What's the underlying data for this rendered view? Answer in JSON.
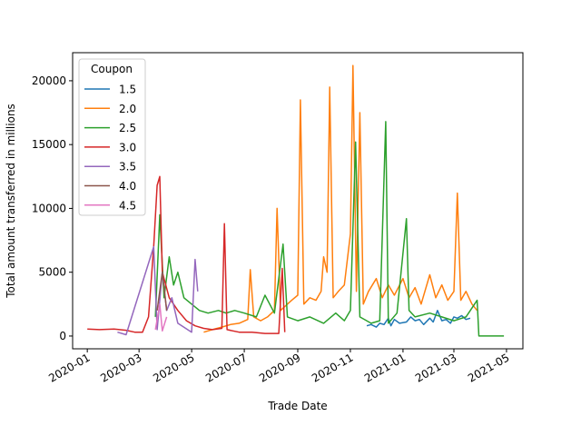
{
  "chart_data": {
    "type": "line",
    "xlabel": "Trade Date",
    "ylabel": "Total amount transferred in millions",
    "xlim": [
      "2019-12-15",
      "2021-05-20"
    ],
    "ylim": [
      -1000,
      22200
    ],
    "x_ticks": [
      "2020-01",
      "2020-03",
      "2020-05",
      "2020-07",
      "2020-09",
      "2020-11",
      "2021-01",
      "2021-03",
      "2021-05"
    ],
    "x_tick_dates": [
      "2020-01-01",
      "2020-03-01",
      "2020-05-01",
      "2020-07-01",
      "2020-09-01",
      "2020-11-01",
      "2021-01-01",
      "2021-03-01",
      "2021-05-01"
    ],
    "y_ticks": [
      0,
      5000,
      10000,
      15000,
      20000
    ],
    "grid": false,
    "legend": {
      "title": "Coupon",
      "position": "upper-left"
    },
    "series": [
      {
        "name": "1.5",
        "color": "#1f77b4",
        "points": [
          [
            "2020-11-20",
            800
          ],
          [
            "2020-11-25",
            900
          ],
          [
            "2020-12-01",
            700
          ],
          [
            "2020-12-05",
            1000
          ],
          [
            "2020-12-10",
            900
          ],
          [
            "2020-12-15",
            1400
          ],
          [
            "2020-12-18",
            800
          ],
          [
            "2020-12-22",
            1300
          ],
          [
            "2020-12-28",
            1000
          ],
          [
            "2021-01-05",
            1100
          ],
          [
            "2021-01-10",
            1500
          ],
          [
            "2021-01-15",
            1200
          ],
          [
            "2021-01-20",
            1300
          ],
          [
            "2021-01-25",
            900
          ],
          [
            "2021-02-01",
            1400
          ],
          [
            "2021-02-05",
            1100
          ],
          [
            "2021-02-10",
            2000
          ],
          [
            "2021-02-15",
            1200
          ],
          [
            "2021-02-20",
            1300
          ],
          [
            "2021-02-25",
            1000
          ],
          [
            "2021-03-01",
            1500
          ],
          [
            "2021-03-05",
            1400
          ],
          [
            "2021-03-10",
            1600
          ],
          [
            "2021-03-15",
            1300
          ],
          [
            "2021-03-20",
            1400
          ]
        ]
      },
      {
        "name": "2.0",
        "color": "#ff7f0e",
        "points": [
          [
            "2020-05-15",
            300
          ],
          [
            "2020-05-25",
            500
          ],
          [
            "2020-06-05",
            700
          ],
          [
            "2020-06-15",
            900
          ],
          [
            "2020-06-25",
            1000
          ],
          [
            "2020-07-05",
            1300
          ],
          [
            "2020-07-08",
            5200
          ],
          [
            "2020-07-12",
            1500
          ],
          [
            "2020-07-20",
            1200
          ],
          [
            "2020-07-28",
            1500
          ],
          [
            "2020-08-05",
            2000
          ],
          [
            "2020-08-08",
            10000
          ],
          [
            "2020-08-12",
            2000
          ],
          [
            "2020-08-20",
            2500
          ],
          [
            "2020-08-25",
            2800
          ],
          [
            "2020-09-01",
            3200
          ],
          [
            "2020-09-04",
            18500
          ],
          [
            "2020-09-08",
            2500
          ],
          [
            "2020-09-15",
            3000
          ],
          [
            "2020-09-22",
            2800
          ],
          [
            "2020-09-28",
            3500
          ],
          [
            "2020-10-01",
            6200
          ],
          [
            "2020-10-05",
            5000
          ],
          [
            "2020-10-08",
            19500
          ],
          [
            "2020-10-12",
            3000
          ],
          [
            "2020-10-18",
            3500
          ],
          [
            "2020-10-25",
            4000
          ],
          [
            "2020-11-01",
            8000
          ],
          [
            "2020-11-04",
            21200
          ],
          [
            "2020-11-08",
            3500
          ],
          [
            "2020-11-12",
            17500
          ],
          [
            "2020-11-16",
            2500
          ],
          [
            "2020-11-22",
            3500
          ],
          [
            "2020-12-01",
            4500
          ],
          [
            "2020-12-08",
            3000
          ],
          [
            "2020-12-15",
            4000
          ],
          [
            "2020-12-22",
            3200
          ],
          [
            "2021-01-01",
            4500
          ],
          [
            "2021-01-08",
            3000
          ],
          [
            "2021-01-15",
            3800
          ],
          [
            "2021-01-22",
            2500
          ],
          [
            "2021-02-01",
            4800
          ],
          [
            "2021-02-08",
            3000
          ],
          [
            "2021-02-15",
            4000
          ],
          [
            "2021-02-22",
            2800
          ],
          [
            "2021-03-01",
            3500
          ],
          [
            "2021-03-05",
            11200
          ],
          [
            "2021-03-09",
            2800
          ],
          [
            "2021-03-15",
            3500
          ],
          [
            "2021-03-22",
            2500
          ],
          [
            "2021-03-28",
            2000
          ]
        ]
      },
      {
        "name": "2.5",
        "color": "#2ca02c",
        "points": [
          [
            "2020-03-20",
            1500
          ],
          [
            "2020-03-25",
            9500
          ],
          [
            "2020-03-30",
            3000
          ],
          [
            "2020-04-05",
            6200
          ],
          [
            "2020-04-10",
            4000
          ],
          [
            "2020-04-15",
            5000
          ],
          [
            "2020-04-22",
            3000
          ],
          [
            "2020-05-01",
            2500
          ],
          [
            "2020-05-10",
            2000
          ],
          [
            "2020-05-20",
            1800
          ],
          [
            "2020-06-01",
            2000
          ],
          [
            "2020-06-10",
            1800
          ],
          [
            "2020-06-20",
            2000
          ],
          [
            "2020-07-01",
            1800
          ],
          [
            "2020-07-15",
            1500
          ],
          [
            "2020-07-25",
            3200
          ],
          [
            "2020-08-05",
            1800
          ],
          [
            "2020-08-15",
            7200
          ],
          [
            "2020-08-20",
            1500
          ],
          [
            "2020-09-01",
            1200
          ],
          [
            "2020-09-15",
            1500
          ],
          [
            "2020-10-01",
            1000
          ],
          [
            "2020-10-15",
            1800
          ],
          [
            "2020-10-25",
            1200
          ],
          [
            "2020-11-01",
            2000
          ],
          [
            "2020-11-07",
            15200
          ],
          [
            "2020-11-12",
            1500
          ],
          [
            "2020-11-25",
            1000
          ],
          [
            "2020-12-05",
            1200
          ],
          [
            "2020-12-12",
            16800
          ],
          [
            "2020-12-15",
            1000
          ],
          [
            "2020-12-25",
            1800
          ],
          [
            "2021-01-05",
            9200
          ],
          [
            "2021-01-08",
            2000
          ],
          [
            "2021-01-15",
            1500
          ],
          [
            "2021-02-01",
            1800
          ],
          [
            "2021-02-15",
            1500
          ],
          [
            "2021-03-01",
            1200
          ],
          [
            "2021-03-15",
            1500
          ],
          [
            "2021-03-28",
            2800
          ],
          [
            "2021-03-30",
            0
          ],
          [
            "2021-04-15",
            0
          ],
          [
            "2021-04-28",
            0
          ]
        ]
      },
      {
        "name": "3.0",
        "color": "#d62728",
        "points": [
          [
            "2020-01-01",
            550
          ],
          [
            "2020-01-15",
            500
          ],
          [
            "2020-02-01",
            550
          ],
          [
            "2020-02-15",
            450
          ],
          [
            "2020-02-25",
            300
          ],
          [
            "2020-03-05",
            300
          ],
          [
            "2020-03-12",
            1500
          ],
          [
            "2020-03-18",
            7000
          ],
          [
            "2020-03-22",
            11800
          ],
          [
            "2020-03-25",
            12500
          ],
          [
            "2020-03-28",
            5000
          ],
          [
            "2020-04-05",
            3000
          ],
          [
            "2020-04-15",
            2000
          ],
          [
            "2020-04-25",
            1200
          ],
          [
            "2020-05-05",
            800
          ],
          [
            "2020-05-15",
            600
          ],
          [
            "2020-05-25",
            500
          ],
          [
            "2020-06-05",
            600
          ],
          [
            "2020-06-08",
            8800
          ],
          [
            "2020-06-11",
            500
          ],
          [
            "2020-06-25",
            300
          ],
          [
            "2020-07-10",
            300
          ],
          [
            "2020-07-25",
            200
          ],
          [
            "2020-08-10",
            200
          ],
          [
            "2020-08-14",
            5300
          ],
          [
            "2020-08-17",
            300
          ]
        ]
      },
      {
        "name": "3.5",
        "color": "#9467bd",
        "points": [
          [
            "2020-02-05",
            300
          ],
          [
            "2020-02-15",
            100
          ],
          [
            "2020-03-18",
            7000
          ],
          [
            "2020-03-22",
            500
          ],
          [
            "2020-03-28",
            5000
          ],
          [
            "2020-04-02",
            2000
          ],
          [
            "2020-04-08",
            3000
          ],
          [
            "2020-04-15",
            1000
          ],
          [
            "2020-05-01",
            300
          ],
          [
            "2020-05-05",
            6000
          ],
          [
            "2020-05-08",
            3500
          ]
        ]
      },
      {
        "name": "4.0",
        "color": "#8c564b",
        "points": [
          [
            "2020-03-22",
            2000
          ],
          [
            "2020-03-28",
            5000
          ],
          [
            "2020-04-02",
            2000
          ]
        ]
      },
      {
        "name": "4.5",
        "color": "#e377c2",
        "points": [
          [
            "2020-03-20",
            500
          ],
          [
            "2020-03-25",
            2500
          ],
          [
            "2020-03-28",
            400
          ],
          [
            "2020-04-02",
            1500
          ]
        ]
      }
    ]
  }
}
